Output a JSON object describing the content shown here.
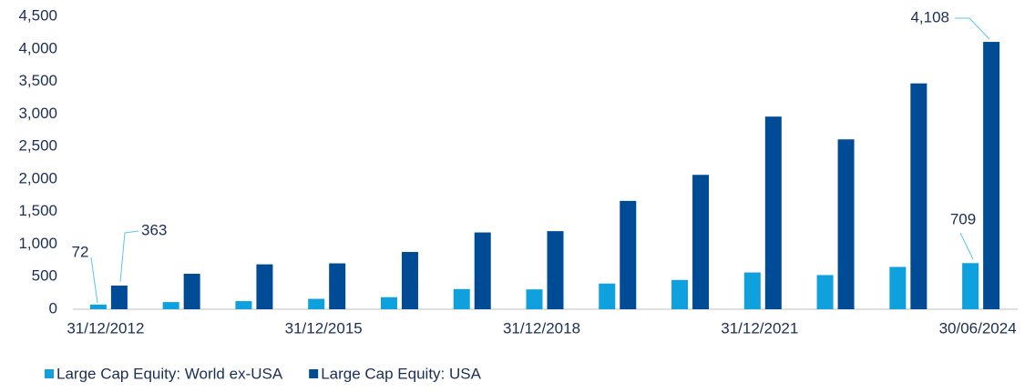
{
  "chart_data": {
    "type": "bar",
    "categories": [
      "31/12/2012",
      null,
      null,
      "31/12/2015",
      null,
      null,
      "31/12/2018",
      null,
      null,
      "31/12/2021",
      null,
      null,
      "30/06/2024"
    ],
    "series": [
      {
        "name": "Large Cap Equity: World ex-USA",
        "color": "#0ea1dd",
        "values": [
          72,
          110,
          125,
          160,
          185,
          310,
          305,
          395,
          450,
          565,
          525,
          650,
          709
        ],
        "value_labels": [
          "72",
          null,
          null,
          null,
          null,
          null,
          null,
          null,
          null,
          null,
          null,
          null,
          "709"
        ]
      },
      {
        "name": "Large Cap Equity: USA",
        "color": "#004b96",
        "values": [
          363,
          545,
          690,
          705,
          880,
          1180,
          1200,
          1665,
          2065,
          2960,
          2610,
          3470,
          4108
        ],
        "value_labels": [
          "363",
          null,
          null,
          null,
          null,
          null,
          null,
          null,
          null,
          null,
          null,
          null,
          "4,108"
        ]
      }
    ],
    "ylim": [
      0,
      4500
    ],
    "yticks": [
      0,
      500,
      {
        "value": 1000,
        "label": "1,000"
      },
      {
        "value": 1500,
        "label": "1,500"
      },
      {
        "value": 2000,
        "label": "2,000"
      },
      {
        "value": 2500,
        "label": "2,500"
      },
      {
        "value": 3000,
        "label": "3,000"
      },
      {
        "value": 3500,
        "label": "3,500"
      },
      {
        "value": 4000,
        "label": "4,000"
      },
      {
        "value": 4500,
        "label": "4,500"
      }
    ],
    "grid": false
  }
}
